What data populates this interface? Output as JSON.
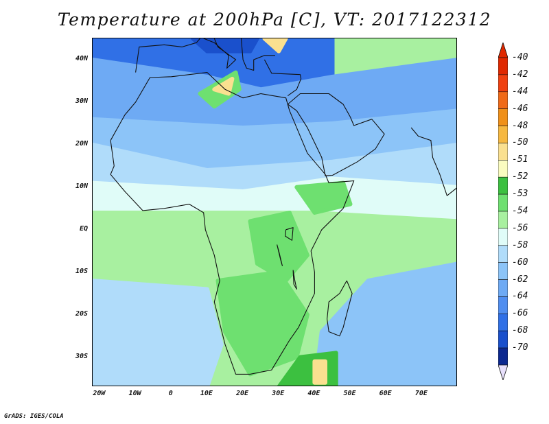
{
  "title": "Temperature at 200hPa [C], VT: 2017122312",
  "credit": "GrADS: IGES/COLA",
  "lat_axis": [
    {
      "label": "40N",
      "lat": 40
    },
    {
      "label": "30N",
      "lat": 30
    },
    {
      "label": "20N",
      "lat": 20
    },
    {
      "label": "10N",
      "lat": 10
    },
    {
      "label": "EQ",
      "lat": 0
    },
    {
      "label": "10S",
      "lat": -10
    },
    {
      "label": "20S",
      "lat": -20
    },
    {
      "label": "30S",
      "lat": -30
    }
  ],
  "lon_axis": [
    {
      "label": "20W",
      "lon": -20
    },
    {
      "label": "10W",
      "lon": -10
    },
    {
      "label": "0",
      "lon": 0
    },
    {
      "label": "10E",
      "lon": 10
    },
    {
      "label": "20E",
      "lon": 20
    },
    {
      "label": "30E",
      "lon": 30
    },
    {
      "label": "40E",
      "lon": 40
    },
    {
      "label": "50E",
      "lon": 50
    },
    {
      "label": "60E",
      "lon": 60
    },
    {
      "label": "70E",
      "lon": 70
    }
  ],
  "extent": {
    "lon_min": -22,
    "lon_max": 80,
    "lat_min": -37,
    "lat_max": 45
  },
  "colorbar": {
    "levels": [
      {
        "label": "-40",
        "color": "#e02800"
      },
      {
        "label": "-42",
        "color": "#f04010"
      },
      {
        "label": "-44",
        "color": "#f06a18"
      },
      {
        "label": "-46",
        "color": "#f09018"
      },
      {
        "label": "-48",
        "color": "#f6b840"
      },
      {
        "label": "-50",
        "color": "#fae090"
      },
      {
        "label": "-51",
        "color": "#fafcc0"
      },
      {
        "label": "-52",
        "color": "#3cc040"
      },
      {
        "label": "-53",
        "color": "#6ee070"
      },
      {
        "label": "-54",
        "color": "#a8f0a0"
      },
      {
        "label": "-56",
        "color": "#e0fcf8"
      },
      {
        "label": "-58",
        "color": "#b0dcfa"
      },
      {
        "label": "-60",
        "color": "#8cc4f8"
      },
      {
        "label": "-62",
        "color": "#6eaaf4"
      },
      {
        "label": "-64",
        "color": "#508ef0"
      },
      {
        "label": "-66",
        "color": "#3070e6"
      },
      {
        "label": "-68",
        "color": "#1a50cc"
      },
      {
        "label": "-70",
        "color": "#0c2890"
      }
    ],
    "over_color": "#e02800",
    "under_color": "#e8e0fc"
  },
  "map_regions": [
    {
      "name": "mediterranean-cold",
      "color": "#3070e6",
      "pts": [
        [
          -22,
          45
        ],
        [
          45,
          45
        ],
        [
          45,
          36
        ],
        [
          25,
          33
        ],
        [
          10,
          36
        ],
        [
          -22,
          40
        ]
      ]
    },
    {
      "name": "north-africa-cool",
      "color": "#6eaaf4",
      "pts": [
        [
          -22,
          40
        ],
        [
          10,
          36
        ],
        [
          25,
          33
        ],
        [
          45,
          36
        ],
        [
          80,
          40
        ],
        [
          80,
          28
        ],
        [
          45,
          25
        ],
        [
          20,
          24
        ],
        [
          -22,
          26
        ]
      ]
    },
    {
      "name": "sahel-band",
      "color": "#8cc4f8",
      "pts": [
        [
          -22,
          26
        ],
        [
          20,
          24
        ],
        [
          45,
          25
        ],
        [
          80,
          28
        ],
        [
          80,
          20
        ],
        [
          45,
          16
        ],
        [
          10,
          14
        ],
        [
          -22,
          20
        ]
      ]
    },
    {
      "name": "tropical-north",
      "color": "#b0dcfa",
      "pts": [
        [
          -22,
          20
        ],
        [
          10,
          14
        ],
        [
          45,
          16
        ],
        [
          80,
          20
        ],
        [
          80,
          10
        ],
        [
          45,
          12
        ],
        [
          20,
          9
        ],
        [
          -22,
          11
        ]
      ]
    },
    {
      "name": "tropical-band",
      "color": "#e0fcf8",
      "pts": [
        [
          -22,
          11
        ],
        [
          20,
          9
        ],
        [
          45,
          12
        ],
        [
          80,
          10
        ],
        [
          80,
          2
        ],
        [
          40,
          4
        ],
        [
          10,
          4
        ],
        [
          -22,
          4
        ]
      ]
    },
    {
      "name": "equatorial-green",
      "color": "#a8f0a0",
      "pts": [
        [
          -22,
          4
        ],
        [
          10,
          4
        ],
        [
          40,
          4
        ],
        [
          80,
          2
        ],
        [
          80,
          -8
        ],
        [
          55,
          -12
        ],
        [
          30,
          -20
        ],
        [
          10,
          -14
        ],
        [
          -22,
          -12
        ]
      ]
    },
    {
      "name": "south-atlantic-cool",
      "color": "#b0dcfa",
      "pts": [
        [
          -22,
          -12
        ],
        [
          10,
          -14
        ],
        [
          14,
          -27
        ],
        [
          10,
          -37
        ],
        [
          -22,
          -37
        ]
      ]
    },
    {
      "name": "indian-ocean-cool",
      "color": "#8cc4f8",
      "pts": [
        [
          55,
          -12
        ],
        [
          80,
          -8
        ],
        [
          80,
          -37
        ],
        [
          40,
          -37
        ],
        [
          42,
          -24
        ]
      ]
    },
    {
      "name": "southern-africa-green",
      "color": "#6ee070",
      "pts": [
        [
          13,
          -12
        ],
        [
          30,
          -10
        ],
        [
          38,
          -20
        ],
        [
          35,
          -30
        ],
        [
          22,
          -34
        ],
        [
          15,
          -24
        ]
      ]
    },
    {
      "name": "east-africa-green",
      "color": "#6ee070",
      "pts": [
        [
          22,
          2
        ],
        [
          33,
          4
        ],
        [
          38,
          -6
        ],
        [
          32,
          -12
        ],
        [
          24,
          -8
        ]
      ]
    },
    {
      "name": "horn-green",
      "color": "#6ee070",
      "pts": [
        [
          35,
          10
        ],
        [
          48,
          11
        ],
        [
          50,
          6
        ],
        [
          40,
          4
        ]
      ]
    },
    {
      "name": "mozambique-green",
      "color": "#3cc040",
      "pts": [
        [
          36,
          -30
        ],
        [
          46,
          -29
        ],
        [
          46,
          -37
        ],
        [
          30,
          -37
        ]
      ]
    },
    {
      "name": "madagascar-warm",
      "color": "#fae090",
      "pts": [
        [
          40,
          -31
        ],
        [
          43,
          -31
        ],
        [
          43,
          -36
        ],
        [
          40,
          -36
        ]
      ]
    },
    {
      "name": "libya-green",
      "color": "#6ee070",
      "pts": [
        [
          8,
          32
        ],
        [
          18,
          37
        ],
        [
          19,
          33
        ],
        [
          12,
          29
        ]
      ]
    },
    {
      "name": "libya-warm",
      "color": "#fae090",
      "pts": [
        [
          12,
          33
        ],
        [
          17,
          35.5
        ],
        [
          16,
          32
        ]
      ]
    },
    {
      "name": "balkans-dark",
      "color": "#1a50cc",
      "pts": [
        [
          6,
          45
        ],
        [
          24,
          45
        ],
        [
          22,
          42
        ],
        [
          10,
          42
        ]
      ]
    },
    {
      "name": "aegean-warm",
      "color": "#fae090",
      "pts": [
        [
          26,
          45
        ],
        [
          32,
          45
        ],
        [
          30,
          42
        ]
      ]
    }
  ],
  "coastline": [
    [
      -17,
      21
    ],
    [
      -16,
      15
    ],
    [
      -17,
      13
    ],
    [
      -13,
      9
    ],
    [
      -8,
      4.5
    ],
    [
      -2,
      5
    ],
    [
      5,
      6
    ],
    [
      9,
      4
    ],
    [
      9.5,
      0
    ],
    [
      12,
      -6
    ],
    [
      13.5,
      -12
    ],
    [
      12,
      -17
    ],
    [
      15,
      -27
    ],
    [
      18,
      -34
    ],
    [
      22,
      -34
    ],
    [
      28,
      -33
    ],
    [
      33,
      -26
    ],
    [
      35.5,
      -23
    ],
    [
      40,
      -15
    ],
    [
      40,
      -10
    ],
    [
      39,
      -5
    ],
    [
      42,
      0
    ],
    [
      48,
      5
    ],
    [
      51,
      11.5
    ],
    [
      44,
      11
    ],
    [
      43,
      13
    ],
    [
      38,
      18
    ],
    [
      33,
      28
    ],
    [
      32,
      31
    ],
    [
      25,
      32
    ],
    [
      20,
      31
    ],
    [
      15,
      33
    ],
    [
      10,
      37
    ],
    [
      0,
      36
    ],
    [
      -6,
      35.8
    ],
    [
      -10,
      30
    ],
    [
      -13,
      27
    ],
    [
      -17,
      21
    ]
  ],
  "madagascar": [
    [
      49,
      -12
    ],
    [
      50.5,
      -15
    ],
    [
      48,
      -23
    ],
    [
      47,
      -25
    ],
    [
      44,
      -24
    ],
    [
      43.5,
      -21
    ],
    [
      44,
      -17
    ],
    [
      47,
      -15
    ],
    [
      49,
      -12
    ]
  ],
  "arabia": [
    [
      32.5,
      29.5
    ],
    [
      35,
      28
    ],
    [
      38,
      24
    ],
    [
      42,
      17
    ],
    [
      43,
      12.7
    ],
    [
      45,
      12.8
    ],
    [
      52,
      16
    ],
    [
      57,
      19
    ],
    [
      59.5,
      22.5
    ],
    [
      56,
      26
    ],
    [
      51,
      24.5
    ],
    [
      50,
      26.5
    ],
    [
      48,
      29.5
    ],
    [
      44,
      32
    ],
    [
      36,
      32
    ],
    [
      32.5,
      29.5
    ]
  ],
  "india": [
    [
      67,
      24
    ],
    [
      69,
      22
    ],
    [
      72.5,
      21
    ],
    [
      73,
      17
    ],
    [
      75,
      13
    ],
    [
      77,
      8
    ],
    [
      80,
      10
    ]
  ],
  "europe": [
    [
      -10,
      37
    ],
    [
      -9,
      43
    ],
    [
      -2,
      43.5
    ],
    [
      3,
      43
    ],
    [
      7,
      44
    ],
    [
      8,
      45
    ]
  ],
  "italy": [
    [
      9,
      45
    ],
    [
      12,
      44
    ],
    [
      16,
      41
    ],
    [
      15.5,
      38
    ],
    [
      18,
      40
    ],
    [
      13,
      43
    ],
    [
      12,
      45
    ]
  ],
  "greece": [
    [
      19.5,
      45
    ],
    [
      20,
      40
    ],
    [
      21,
      38
    ],
    [
      23,
      37.5
    ],
    [
      23,
      40
    ],
    [
      26,
      41
    ],
    [
      29,
      41
    ]
  ],
  "turkey": [
    [
      26,
      40
    ],
    [
      28,
      36.8
    ],
    [
      36,
      36.5
    ],
    [
      36.2,
      35.5
    ],
    [
      35,
      33
    ],
    [
      32.5,
      31.5
    ]
  ],
  "lakes": [
    [
      [
        32,
        0
      ],
      [
        34,
        0.5
      ],
      [
        33.7,
        -2.5
      ],
      [
        31.8,
        -1.5
      ],
      [
        32,
        0
      ]
    ],
    [
      [
        29.5,
        -3.5
      ],
      [
        30,
        -5
      ],
      [
        31,
        -8.5
      ],
      [
        30.5,
        -7
      ],
      [
        29.5,
        -3.5
      ]
    ],
    [
      [
        34,
        -9.5
      ],
      [
        34.5,
        -12
      ],
      [
        35,
        -14
      ],
      [
        34.2,
        -12.8
      ],
      [
        34,
        -9.5
      ]
    ]
  ]
}
